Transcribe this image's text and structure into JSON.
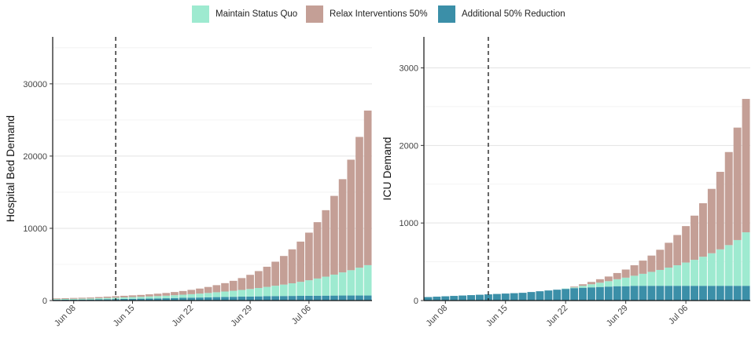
{
  "legend": [
    {
      "name": "Maintain Status Quo",
      "color": "#9eead0"
    },
    {
      "name": "Relax Interventions 50%",
      "color": "#c49f96"
    },
    {
      "name": "Additional 50% Reduction",
      "color": "#3b8fa8"
    }
  ],
  "chart_data": [
    {
      "type": "bar",
      "stacked": true,
      "ylabel": "Hospital Bed Demand",
      "xlabel": "",
      "x_tick_labels": [
        "Jun 08",
        "Jun 15",
        "Jun 22",
        "Jun 29",
        "Jul 06"
      ],
      "y_tick_labels": [
        "0",
        "10000",
        "20000",
        "30000"
      ],
      "yticks": [
        0,
        10000,
        20000,
        30000
      ],
      "ylim": [
        0,
        36500
      ],
      "reference_line": {
        "date": "Jun 13"
      },
      "grid": true,
      "start_date": "Jun 06",
      "end_date": "Jul 13",
      "series": [
        {
          "name": "Additional 50% Reduction",
          "color": "#3b8fa8",
          "values": [
            100,
            110,
            120,
            130,
            140,
            160,
            180,
            200,
            220,
            240,
            260,
            280,
            300,
            320,
            350,
            380,
            400,
            420,
            450,
            480,
            500,
            520,
            540,
            560,
            580,
            600,
            620,
            630,
            640,
            650,
            660,
            670,
            680,
            690,
            700,
            700,
            700,
            700
          ]
        },
        {
          "name": "Maintain Status Quo",
          "color": "#9eead0",
          "values": [
            100,
            110,
            120,
            130,
            140,
            160,
            180,
            200,
            220,
            240,
            260,
            290,
            320,
            350,
            390,
            430,
            480,
            540,
            600,
            670,
            750,
            830,
            930,
            1040,
            1160,
            1290,
            1430,
            1580,
            1750,
            1940,
            2150,
            2380,
            2630,
            2900,
            3200,
            3500,
            3850,
            4200
          ]
        },
        {
          "name": "Relax Interventions 50%",
          "color": "#c49f96",
          "values": [
            100,
            110,
            120,
            130,
            140,
            160,
            180,
            200,
            220,
            240,
            260,
            290,
            330,
            380,
            440,
            510,
            600,
            700,
            830,
            980,
            1160,
            1380,
            1640,
            1960,
            2340,
            2790,
            3330,
            3960,
            4700,
            5570,
            6590,
            7800,
            9200,
            10900,
            12900,
            15300,
            18100,
            21400
          ]
        }
      ]
    },
    {
      "type": "bar",
      "stacked": true,
      "ylabel": "ICU Demand",
      "xlabel": "",
      "x_tick_labels": [
        "Jun 08",
        "Jun 15",
        "Jun 22",
        "Jun 29",
        "Jul 06"
      ],
      "y_tick_labels": [
        "0",
        "1000",
        "2000",
        "3000"
      ],
      "yticks": [
        0,
        1000,
        2000,
        3000
      ],
      "ylim": [
        0,
        3400
      ],
      "reference_line": {
        "date": "Jun 13"
      },
      "grid": true,
      "start_date": "Jun 06",
      "end_date": "Jul 13",
      "series": [
        {
          "name": "Additional 50% Reduction",
          "color": "#3b8fa8",
          "values": [
            45,
            50,
            55,
            60,
            65,
            70,
            75,
            80,
            85,
            90,
            95,
            100,
            110,
            120,
            130,
            140,
            150,
            160,
            165,
            170,
            175,
            180,
            185,
            185,
            190,
            190,
            190,
            190,
            190,
            190,
            190,
            190,
            190,
            190,
            190,
            190,
            190,
            190
          ]
        },
        {
          "name": "Maintain Status Quo",
          "color": "#9eead0",
          "values": [
            0,
            0,
            0,
            0,
            0,
            0,
            0,
            0,
            0,
            0,
            0,
            0,
            0,
            0,
            0,
            0,
            5,
            10,
            25,
            40,
            55,
            70,
            90,
            110,
            130,
            155,
            180,
            205,
            235,
            265,
            300,
            335,
            375,
            420,
            470,
            525,
            590,
            690
          ]
        },
        {
          "name": "Relax Interventions 50%",
          "color": "#c49f96",
          "values": [
            0,
            0,
            0,
            0,
            0,
            0,
            0,
            0,
            0,
            0,
            0,
            0,
            0,
            0,
            0,
            0,
            0,
            10,
            20,
            30,
            45,
            60,
            80,
            105,
            135,
            170,
            210,
            260,
            320,
            390,
            470,
            570,
            690,
            830,
            1000,
            1200,
            1450,
            1720
          ]
        }
      ]
    }
  ]
}
